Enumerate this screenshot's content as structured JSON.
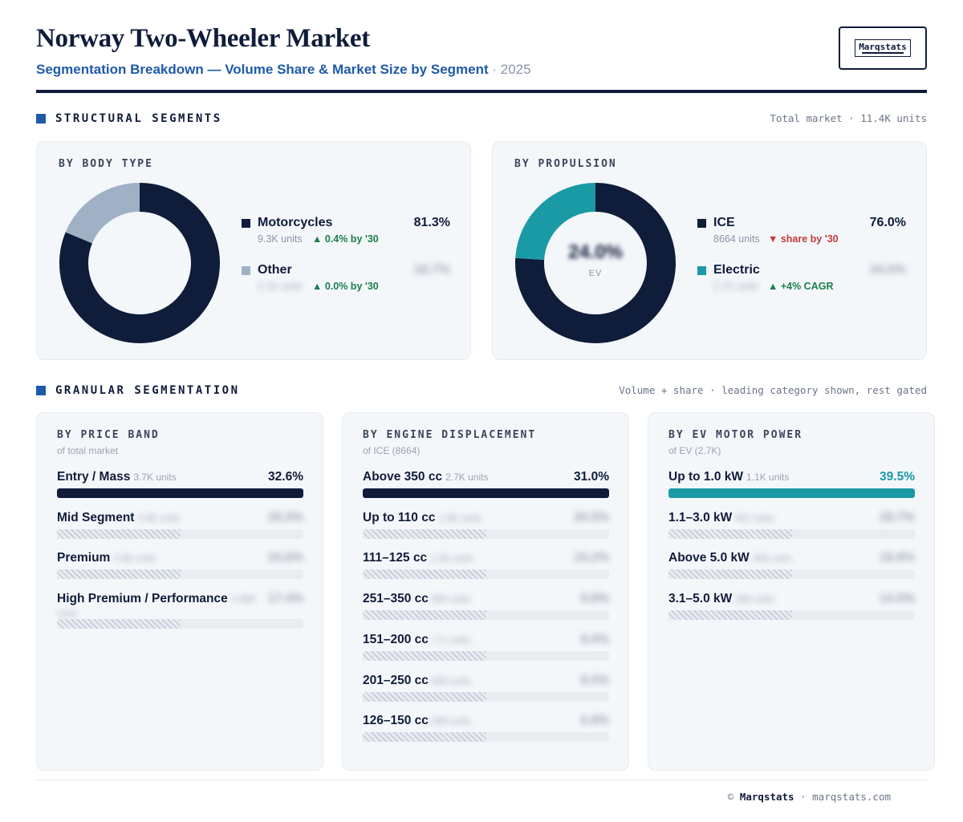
{
  "header": {
    "title": "Norway Two-Wheeler Market",
    "subtitle": "Segmentation Breakdown — Volume Share & Market Size by Segment",
    "year": "· 2025",
    "logo_text": "Marqstats"
  },
  "structural": {
    "label": "STRUCTURAL SEGMENTS",
    "note": "Total market · 11.4K units"
  },
  "granular": {
    "label": "GRANULAR SEGMENTATION",
    "note": "Volume + share · leading category shown, rest gated"
  },
  "colors": {
    "navy": "#0f1c3a",
    "slate": "#a0b1c6",
    "teal": "#1a9aa5",
    "accent": "#1e5aa8",
    "up": "#1a7f4b",
    "down": "#c23b3b"
  },
  "chart_data": [
    {
      "type": "pie",
      "title": "BY BODY TYPE",
      "slices": [
        {
          "name": "Motorcycles",
          "value": 81.3,
          "value_label": "81.3%",
          "units": "9.3K units",
          "delta": "▲ 0.4% by '30",
          "delta_dir": "up",
          "color": "#0f1c3a"
        },
        {
          "name": "Other",
          "value": 18.7,
          "value_label": "18.7%",
          "units": "2.1K units",
          "delta": "▲ 0.0% by '30",
          "delta_dir": "up",
          "color": "#a0b1c6",
          "gated": true
        }
      ]
    },
    {
      "type": "pie",
      "title": "BY PROPULSION",
      "center_value": "24.0%",
      "center_label": "EV",
      "slices": [
        {
          "name": "ICE",
          "value": 76.0,
          "value_label": "76.0%",
          "units": "8664 units",
          "delta": "▼ share by '30",
          "delta_dir": "down",
          "color": "#0f1c3a"
        },
        {
          "name": "Electric",
          "value": 24.0,
          "value_label": "24.0%",
          "units": "2.7K units",
          "delta": "▲ +4% CAGR",
          "delta_dir": "up",
          "color": "#1a9aa5",
          "gated": true
        }
      ]
    },
    {
      "type": "bar",
      "title": "BY PRICE BAND",
      "subtitle": "of total market",
      "color": "#0f1c3a",
      "rows": [
        {
          "name": "Entry / Mass",
          "units": "3.7K units",
          "value": 32.6,
          "value_label": "32.6%",
          "gated": false
        },
        {
          "name": "Mid Segment",
          "units": "2.9K units",
          "value": 25.0,
          "value_label": "25.0%",
          "gated": true
        },
        {
          "name": "Premium",
          "units": "2.8K units",
          "value": 24.6,
          "value_label": "24.6%",
          "gated": true
        },
        {
          "name": "High Premium / Performance",
          "units": "1.98K units",
          "value": 17.4,
          "value_label": "17.4%",
          "gated": true
        }
      ]
    },
    {
      "type": "bar",
      "title": "BY ENGINE DISPLACEMENT",
      "subtitle": "of ICE (8664)",
      "color": "#0f1c3a",
      "rows": [
        {
          "name": "Above 350 cc",
          "units": "2.7K units",
          "value": 31.0,
          "value_label": "31.0%",
          "gated": false
        },
        {
          "name": "Up to 110 cc",
          "units": "1.8K units",
          "value": 20.5,
          "value_label": "20.5%",
          "gated": true
        },
        {
          "name": "111–125 cc",
          "units": "1.3K units",
          "value": 15.2,
          "value_label": "15.2%",
          "gated": true
        },
        {
          "name": "251–350 cc",
          "units": "850 units",
          "value": 9.8,
          "value_label": "9.8%",
          "gated": true
        },
        {
          "name": "151–200 cc",
          "units": "771 units",
          "value": 8.9,
          "value_label": "8.9%",
          "gated": true
        },
        {
          "name": "201–250 cc",
          "units": "693 units",
          "value": 8.0,
          "value_label": "8.0%",
          "gated": true
        },
        {
          "name": "126–150 cc",
          "units": "589 units",
          "value": 6.8,
          "value_label": "6.8%",
          "gated": true
        }
      ]
    },
    {
      "type": "bar",
      "title": "BY EV MOTOR POWER",
      "subtitle": "of EV (2.7K)",
      "color": "#1a9aa5",
      "rows": [
        {
          "name": "Up to 1.0 kW",
          "units": "1.1K units",
          "value": 39.5,
          "value_label": "39.5%",
          "gated": false
        },
        {
          "name": "1.1–3.0 kW",
          "units": "811 units",
          "value": 29.7,
          "value_label": "29.7%",
          "gated": true
        },
        {
          "name": "Above 5.0 kW",
          "units": "456 units",
          "value": 16.8,
          "value_label": "16.8%",
          "gated": true
        },
        {
          "name": "3.1–5.0 kW",
          "units": "380 units",
          "value": 14.0,
          "value_label": "14.0%",
          "gated": true
        }
      ]
    }
  ],
  "footer": {
    "copyright": "©",
    "brand": "Marqstats",
    "site": "· marqstats.com"
  }
}
